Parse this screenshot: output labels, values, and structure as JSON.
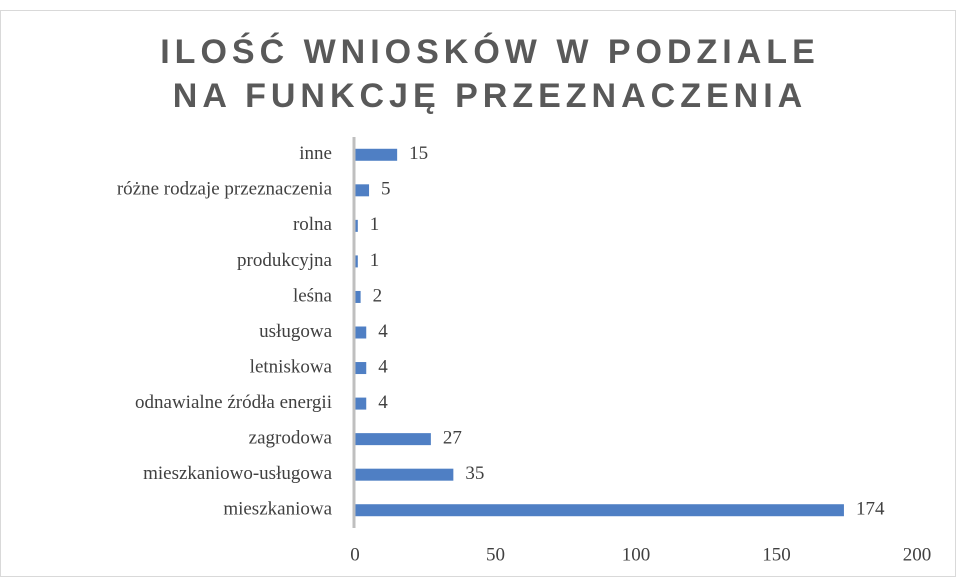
{
  "chart_data": {
    "type": "barh",
    "title": "ILOŚĆ WNIOSKÓW W PODZIALE NA FUNKCJĘ PRZEZNACZENIA",
    "categories": [
      "inne",
      "różne rodzaje przeznaczenia",
      "rolna",
      "produkcyjna",
      "leśna",
      "usługowa",
      "letniskowa",
      "odnawialne źródła energii",
      "zagrodowa",
      "mieszkaniowo-usługowa",
      "mieszkaniowa"
    ],
    "values": [
      15,
      5,
      1,
      1,
      2,
      4,
      4,
      4,
      27,
      35,
      174
    ],
    "color": "#4f7fc4",
    "xlim": [
      0,
      200
    ],
    "xticks": [
      0,
      50,
      100,
      150,
      200
    ]
  }
}
